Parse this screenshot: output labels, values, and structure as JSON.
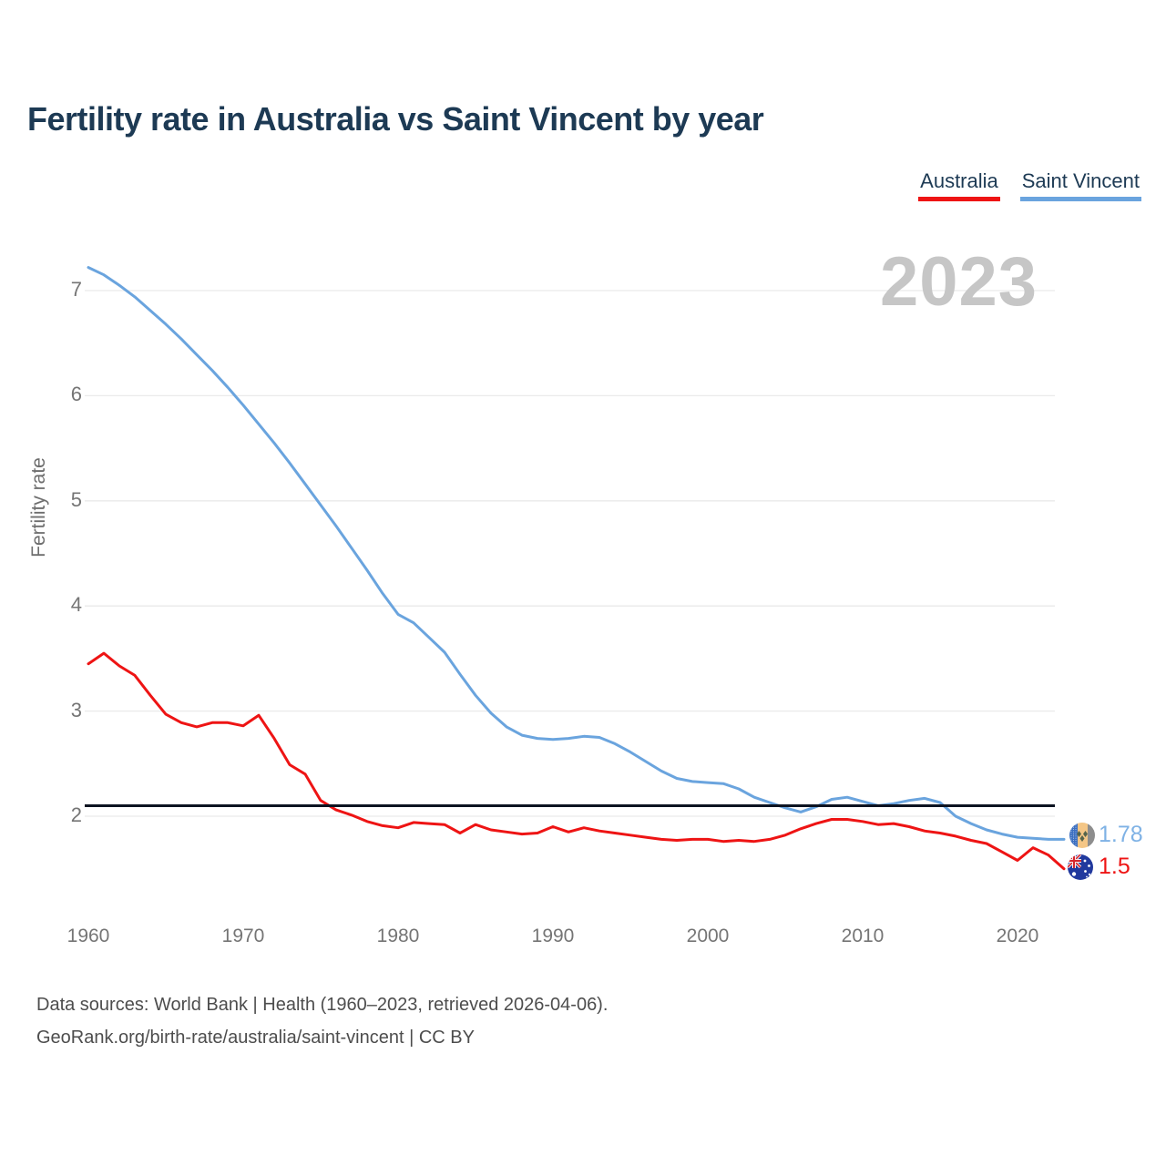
{
  "title": "Fertility rate in Australia vs Saint Vincent by year",
  "watermark": "2023",
  "legend": {
    "items": [
      {
        "label": "Australia",
        "color": "#ee1414"
      },
      {
        "label": "Saint Vincent",
        "color": "#6aa4de"
      }
    ]
  },
  "chart_data": {
    "type": "line",
    "title": "Fertility rate in Australia vs Saint Vincent by year",
    "xlabel": "",
    "ylabel": "Fertility rate",
    "xlim": [
      1960,
      2023
    ],
    "ylim": [
      1.3,
      7.4
    ],
    "x_ticks": [
      1960,
      1970,
      1980,
      1990,
      2000,
      2010,
      2020
    ],
    "y_ticks": [
      2,
      3,
      4,
      5,
      6,
      7
    ],
    "grid": "horizontal",
    "legend_position": "top-right",
    "reference_line": {
      "value": 2.1,
      "color": "#0d1321"
    },
    "x": [
      1960,
      1961,
      1962,
      1963,
      1964,
      1965,
      1966,
      1967,
      1968,
      1969,
      1970,
      1971,
      1972,
      1973,
      1974,
      1975,
      1976,
      1977,
      1978,
      1979,
      1980,
      1981,
      1982,
      1983,
      1984,
      1985,
      1986,
      1987,
      1988,
      1989,
      1990,
      1991,
      1992,
      1993,
      1994,
      1995,
      1996,
      1997,
      1998,
      1999,
      2000,
      2001,
      2002,
      2003,
      2004,
      2005,
      2006,
      2007,
      2008,
      2009,
      2010,
      2011,
      2012,
      2013,
      2014,
      2015,
      2016,
      2017,
      2018,
      2019,
      2020,
      2021,
      2022,
      2023
    ],
    "series": [
      {
        "name": "Australia",
        "color": "#ee1414",
        "end_label": "1.5",
        "end_label_color": "#ee1414",
        "flag": "australia",
        "values": [
          3.45,
          3.55,
          3.43,
          3.34,
          3.15,
          2.97,
          2.89,
          2.85,
          2.89,
          2.89,
          2.86,
          2.96,
          2.74,
          2.49,
          2.4,
          2.15,
          2.06,
          2.01,
          1.95,
          1.91,
          1.89,
          1.94,
          1.93,
          1.92,
          1.84,
          1.92,
          1.87,
          1.85,
          1.83,
          1.84,
          1.9,
          1.85,
          1.89,
          1.86,
          1.84,
          1.82,
          1.8,
          1.78,
          1.77,
          1.78,
          1.78,
          1.76,
          1.77,
          1.76,
          1.78,
          1.82,
          1.88,
          1.93,
          1.97,
          1.97,
          1.95,
          1.92,
          1.93,
          1.9,
          1.86,
          1.84,
          1.81,
          1.77,
          1.74,
          1.66,
          1.58,
          1.7,
          1.63,
          1.5
        ]
      },
      {
        "name": "Saint Vincent",
        "color": "#6aa4de",
        "end_label": "1.78",
        "end_label_color": "#7fb2e5",
        "flag": "saint-vincent",
        "values": [
          7.22,
          7.15,
          7.05,
          6.94,
          6.81,
          6.68,
          6.54,
          6.39,
          6.24,
          6.08,
          5.91,
          5.73,
          5.55,
          5.36,
          5.16,
          4.96,
          4.76,
          4.55,
          4.34,
          4.12,
          3.92,
          3.84,
          3.7,
          3.56,
          3.35,
          3.15,
          2.98,
          2.85,
          2.77,
          2.74,
          2.73,
          2.74,
          2.76,
          2.75,
          2.69,
          2.61,
          2.52,
          2.43,
          2.36,
          2.33,
          2.32,
          2.31,
          2.26,
          2.18,
          2.13,
          2.08,
          2.04,
          2.09,
          2.16,
          2.18,
          2.14,
          2.1,
          2.12,
          2.15,
          2.17,
          2.13,
          2.0,
          1.93,
          1.87,
          1.83,
          1.8,
          1.79,
          1.78,
          1.78
        ]
      }
    ]
  },
  "footer": {
    "line1": "Data sources: World Bank | Health (1960–2023, retrieved 2026-04-06).",
    "line2": "GeoRank.org/birth-rate/australia/saint-vincent | CC BY"
  }
}
